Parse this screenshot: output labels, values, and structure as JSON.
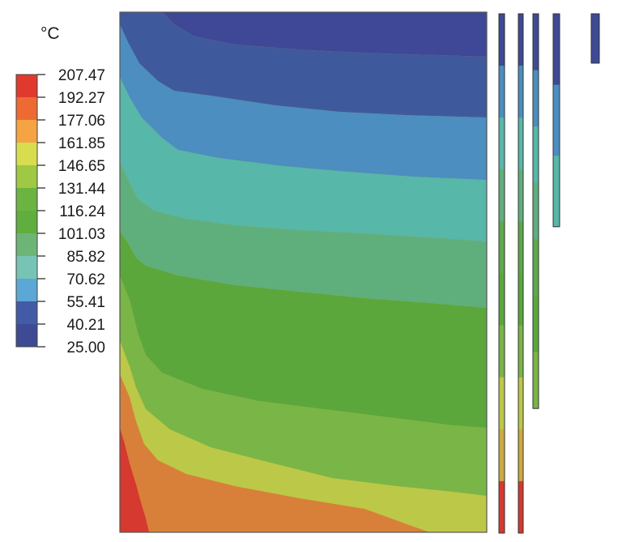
{
  "chart_data": {
    "type": "heatmap",
    "unit": "°C",
    "legend": {
      "placement": "left",
      "levels": [
        "207.47",
        "192.27",
        "177.06",
        "161.85",
        "146.65",
        "131.44",
        "116.24",
        "101.03",
        "85.82",
        "70.62",
        "55.41",
        "40.21",
        "25.00"
      ],
      "band_colors": [
        "#e03a2f",
        "#ee6a33",
        "#f4a443",
        "#d7dd4f",
        "#9fc845",
        "#6cb441",
        "#5fae3e",
        "#6db577",
        "#78c4b4",
        "#5ba7d6",
        "#435aa6",
        "#3e4a94"
      ]
    },
    "contour_fill_colors": [
      "#3f4896",
      "#3f5a9c",
      "#4b8ebf",
      "#57b7a8",
      "#5faf7d",
      "#5ea94c",
      "#5ba73b",
      "#7ab547",
      "#bcc847",
      "#cdaa3f",
      "#d8803a",
      "#d5392f"
    ],
    "side_bars": [
      {
        "length_fraction": 1.0,
        "colors": [
          "#3e4a94",
          "#4b8ebf",
          "#57b7a8",
          "#5faf7d",
          "#5ea94c",
          "#5ba73b",
          "#7ab547",
          "#bcc847",
          "#cdaa3f",
          "#d5392f"
        ]
      },
      {
        "length_fraction": 1.0,
        "colors": [
          "#3e4a94",
          "#4b8ebf",
          "#57b7a8",
          "#5faf7d",
          "#5ea94c",
          "#5ba73b",
          "#7ab547",
          "#bcc847",
          "#cdaa3f",
          "#d5392f"
        ]
      },
      {
        "length_fraction": 0.76,
        "colors": [
          "#3e4a94",
          "#4b8ebf",
          "#57b7a8",
          "#5faf7d",
          "#5ea94c",
          "#5ba73b",
          "#7ab547"
        ]
      },
      {
        "length_fraction": 0.41,
        "colors": [
          "#3e4a94",
          "#4b8ebf",
          "#57b7a8"
        ]
      },
      {
        "length_fraction": 0.095,
        "colors": [
          "#3e4a94"
        ]
      }
    ]
  }
}
